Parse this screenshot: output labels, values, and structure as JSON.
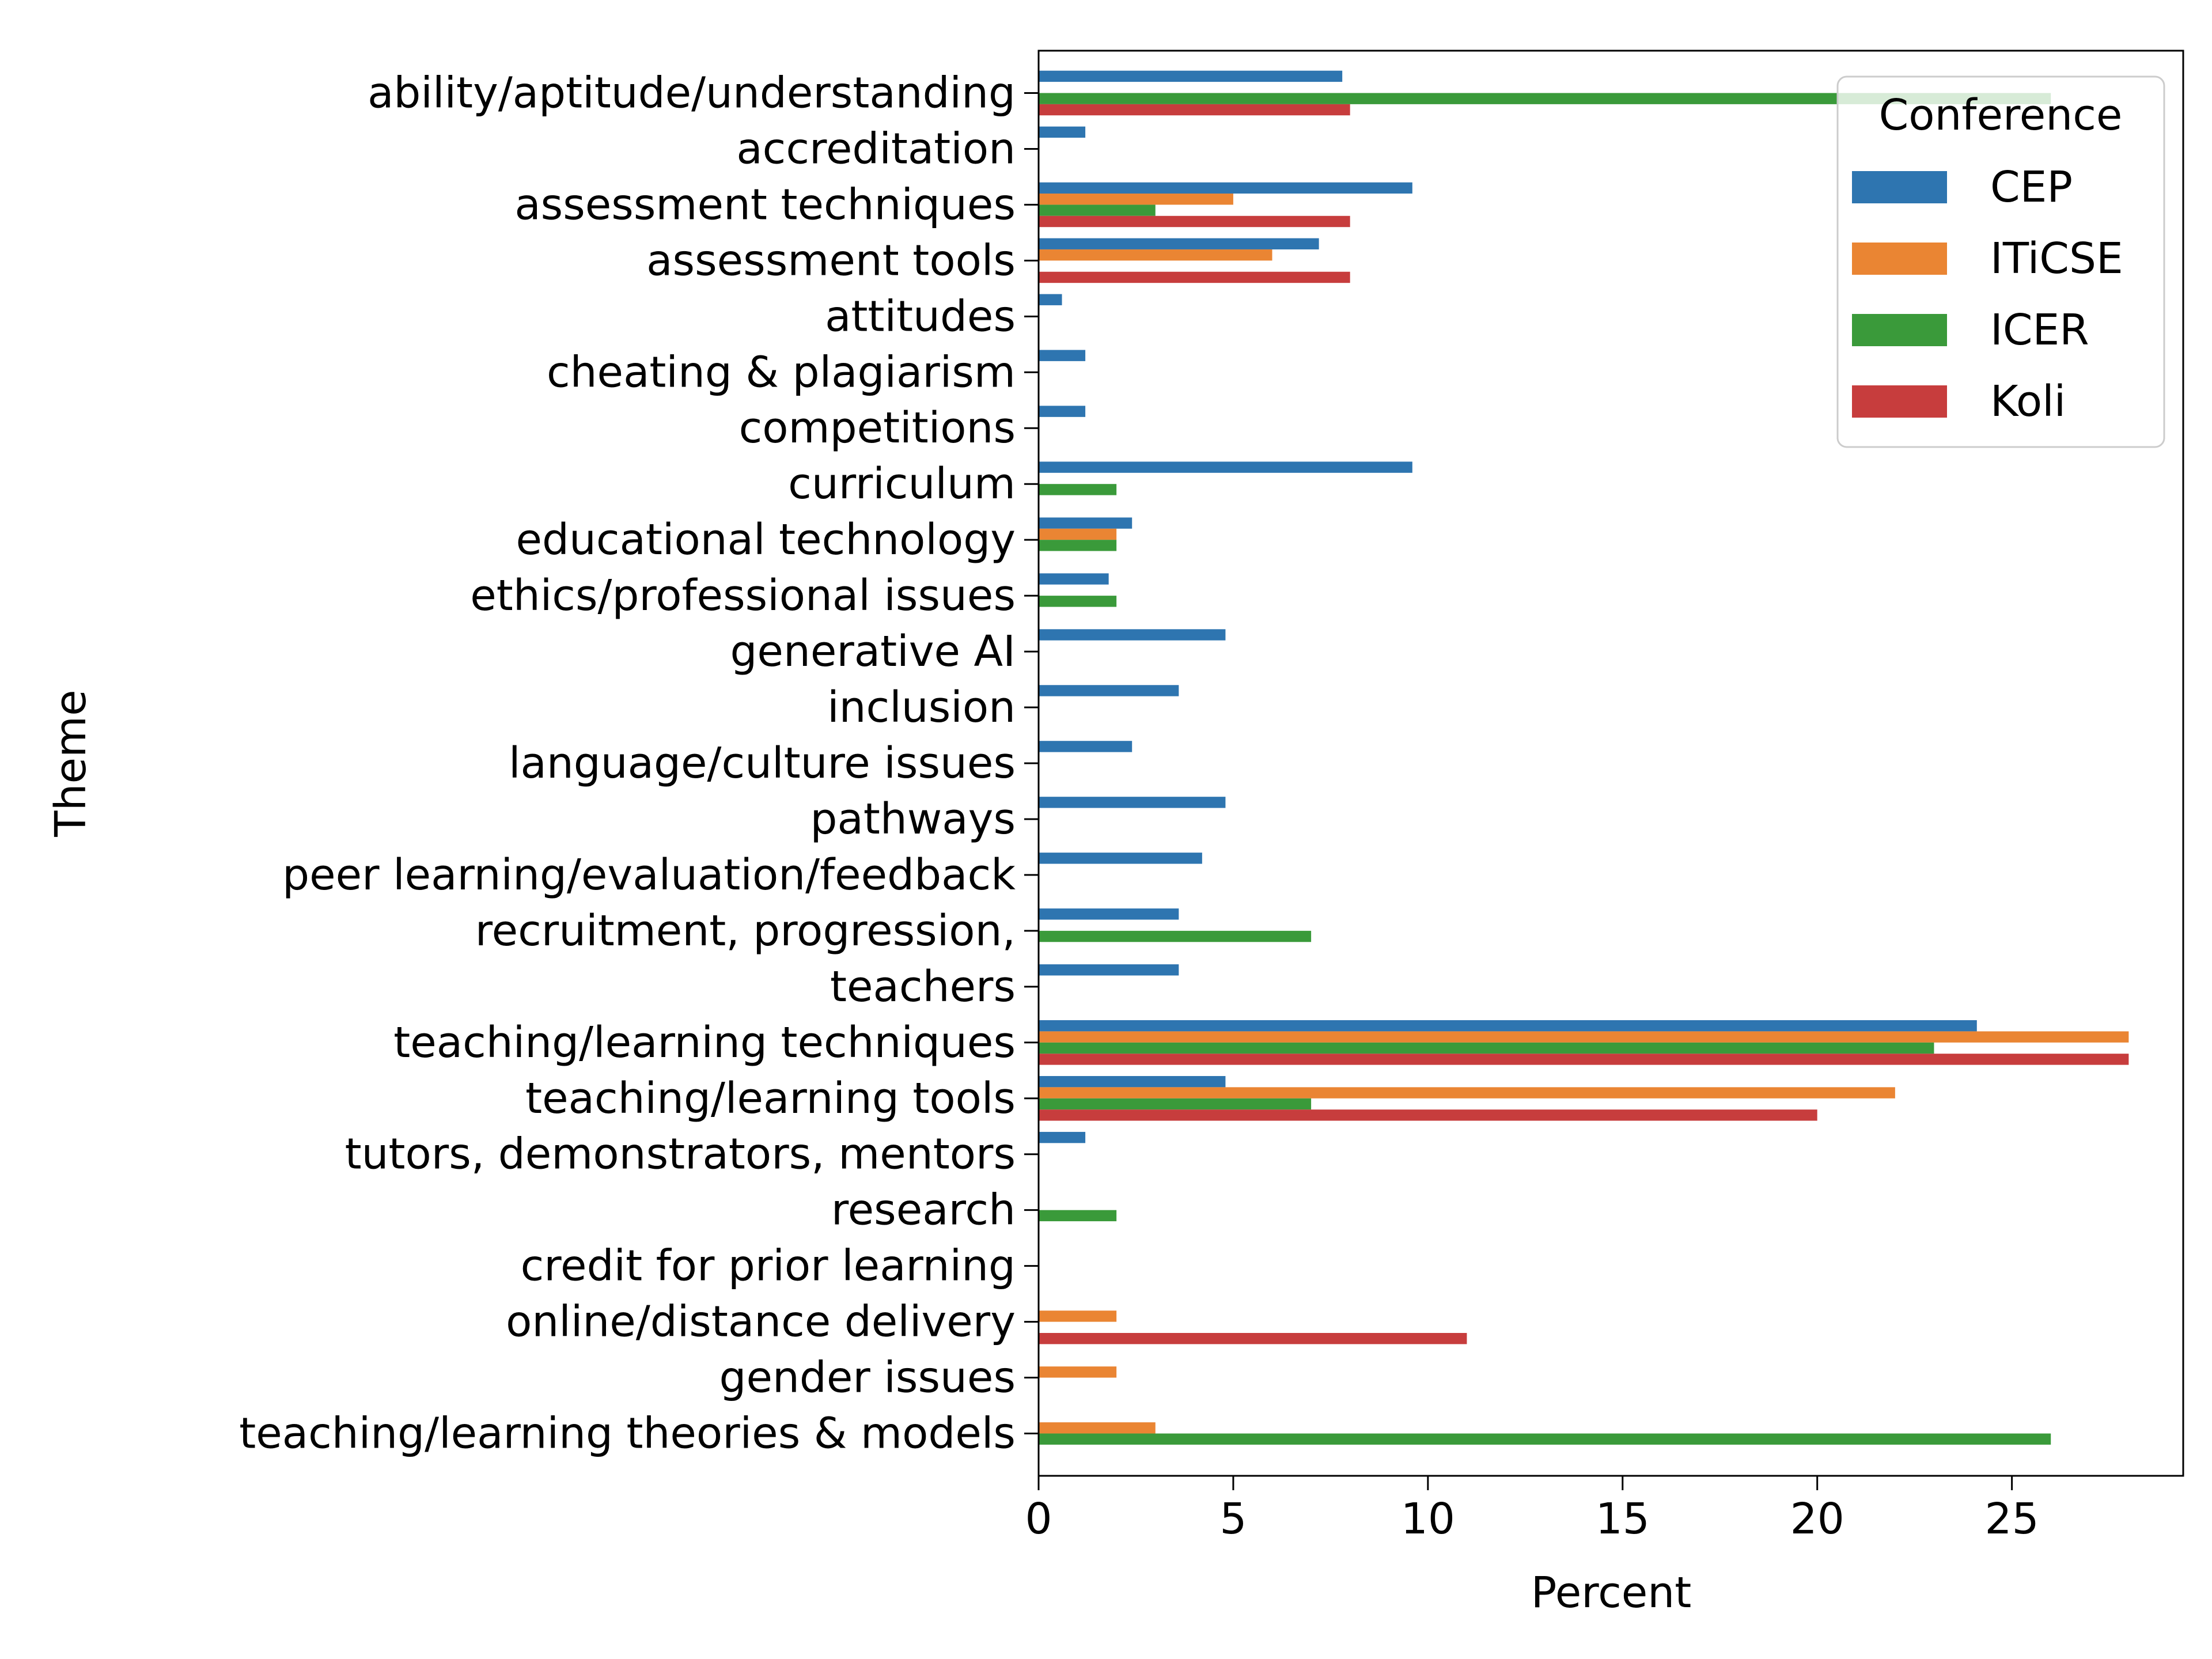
{
  "chart_data": {
    "type": "bar",
    "orientation": "horizontal",
    "xlabel": "Percent",
    "ylabel": "Theme",
    "xlim": [
      0,
      29.4
    ],
    "xticks": [
      0,
      5,
      10,
      15,
      20,
      25
    ],
    "grid": false,
    "legend": {
      "title": "Conference",
      "placement": "top-right"
    },
    "categories": [
      "ability/aptitude/understanding",
      "accreditation",
      "assessment techniques",
      "assessment tools",
      "attitudes",
      "cheating & plagiarism",
      "competitions",
      "curriculum",
      "educational technology",
      "ethics/professional issues",
      "generative AI",
      "inclusion",
      "language/culture issues",
      "pathways",
      "peer learning/evaluation/feedback",
      "recruitment, progression,",
      "teachers",
      "teaching/learning techniques",
      "teaching/learning tools",
      "tutors, demonstrators, mentors",
      "research",
      "credit for prior learning",
      "online/distance delivery",
      "gender issues",
      "teaching/learning theories & models"
    ],
    "series": [
      {
        "name": "CEP",
        "color": "#2e75b0",
        "values": [
          7.8,
          1.2,
          9.6,
          7.2,
          0.6,
          1.2,
          1.2,
          9.6,
          2.4,
          1.8,
          4.8,
          3.6,
          2.4,
          4.8,
          4.2,
          3.6,
          3.6,
          24.1,
          4.8,
          1.2,
          0,
          0,
          0,
          0,
          0
        ]
      },
      {
        "name": "ITiCSE",
        "color": "#ea8533",
        "values": [
          0,
          0,
          5,
          6,
          0,
          0,
          0,
          0,
          2,
          0,
          0,
          0,
          0,
          0,
          0,
          0,
          0,
          28,
          22,
          0,
          0,
          0,
          2,
          2,
          3
        ]
      },
      {
        "name": "ICER",
        "color": "#3a9a3a",
        "values": [
          26,
          0,
          3,
          0,
          0,
          0,
          0,
          2,
          2,
          2,
          0,
          0,
          0,
          0,
          0,
          7,
          0,
          23,
          7,
          0,
          2,
          0,
          0,
          0,
          26
        ]
      },
      {
        "name": "Koli",
        "color": "#c73d3d",
        "values": [
          8,
          0,
          8,
          8,
          0,
          0,
          0,
          0,
          0,
          0,
          0,
          0,
          0,
          0,
          0,
          0,
          0,
          28,
          20,
          0,
          0,
          0,
          11,
          0,
          0
        ]
      }
    ]
  }
}
